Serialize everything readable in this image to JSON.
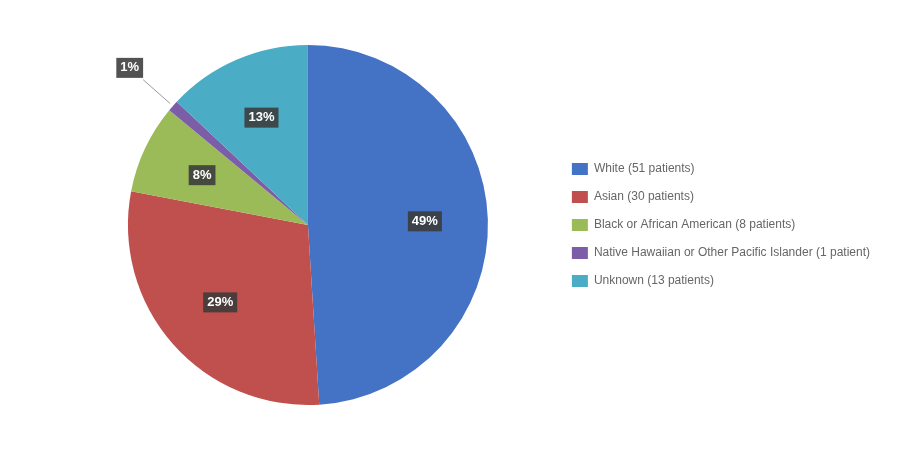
{
  "chart_data": {
    "type": "pie",
    "categories": [
      "White (51 patients)",
      "Asian (30 patients)",
      "Black or African American (8 patients)",
      "Native Hawaiian or Other Pacific Islander (1 patient)",
      "Unknown (13 patients)"
    ],
    "values": [
      49,
      29,
      8,
      1,
      13
    ],
    "value_labels": [
      "49%",
      "29%",
      "8%",
      "1%",
      "13%"
    ],
    "colors": [
      "#4472C4",
      "#C0504D",
      "#9BBB59",
      "#7B5EA7",
      "#4BACC6"
    ],
    "legend": "right",
    "data_labels": true
  }
}
